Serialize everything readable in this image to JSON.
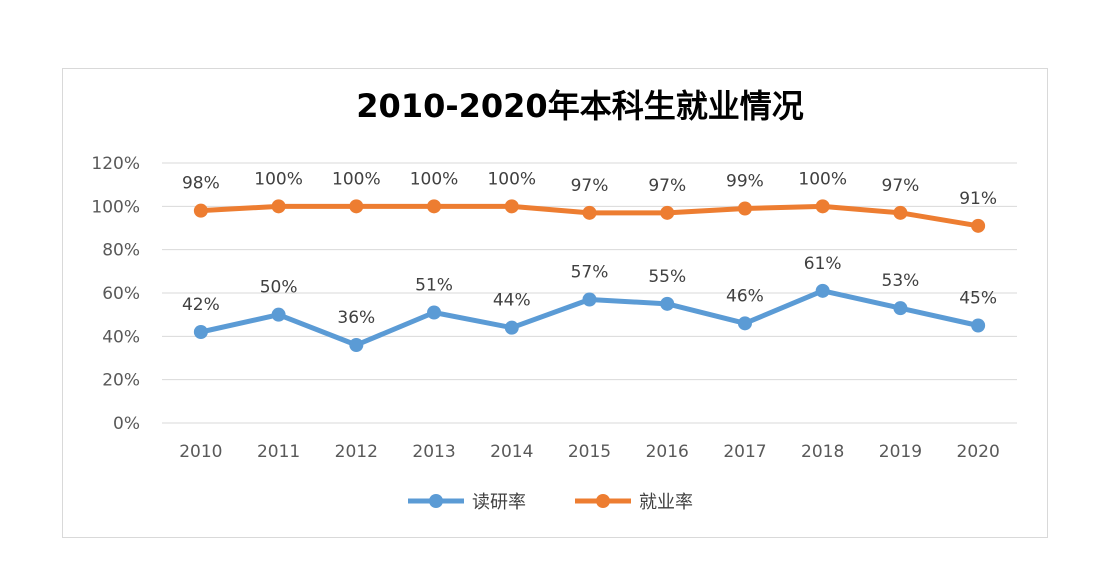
{
  "chart_data": {
    "type": "line",
    "title": "2010-2020年本科生就业情况",
    "categories": [
      "2010",
      "2011",
      "2012",
      "2013",
      "2014",
      "2015",
      "2016",
      "2017",
      "2018",
      "2019",
      "2020"
    ],
    "series": [
      {
        "name": "读研率",
        "color": "#5b9bd5",
        "values": [
          42,
          50,
          36,
          51,
          44,
          57,
          55,
          46,
          61,
          53,
          45
        ],
        "labels": [
          "42%",
          "50%",
          "36%",
          "51%",
          "44%",
          "57%",
          "55%",
          "46%",
          "61%",
          "53%",
          "45%"
        ]
      },
      {
        "name": "就业率",
        "color": "#ed7d31",
        "values": [
          98,
          100,
          100,
          100,
          100,
          97,
          97,
          99,
          100,
          97,
          91
        ],
        "labels": [
          "98%",
          "100%",
          "100%",
          "100%",
          "100%",
          "97%",
          "97%",
          "99%",
          "100%",
          "97%",
          "91%"
        ]
      }
    ],
    "ylim": [
      0,
      120
    ],
    "yticks": [
      0,
      20,
      40,
      60,
      80,
      100,
      120
    ],
    "ytick_labels": [
      "0%",
      "20%",
      "40%",
      "60%",
      "80%",
      "100%",
      "120%"
    ],
    "grid": true,
    "legend_position": "bottom"
  }
}
